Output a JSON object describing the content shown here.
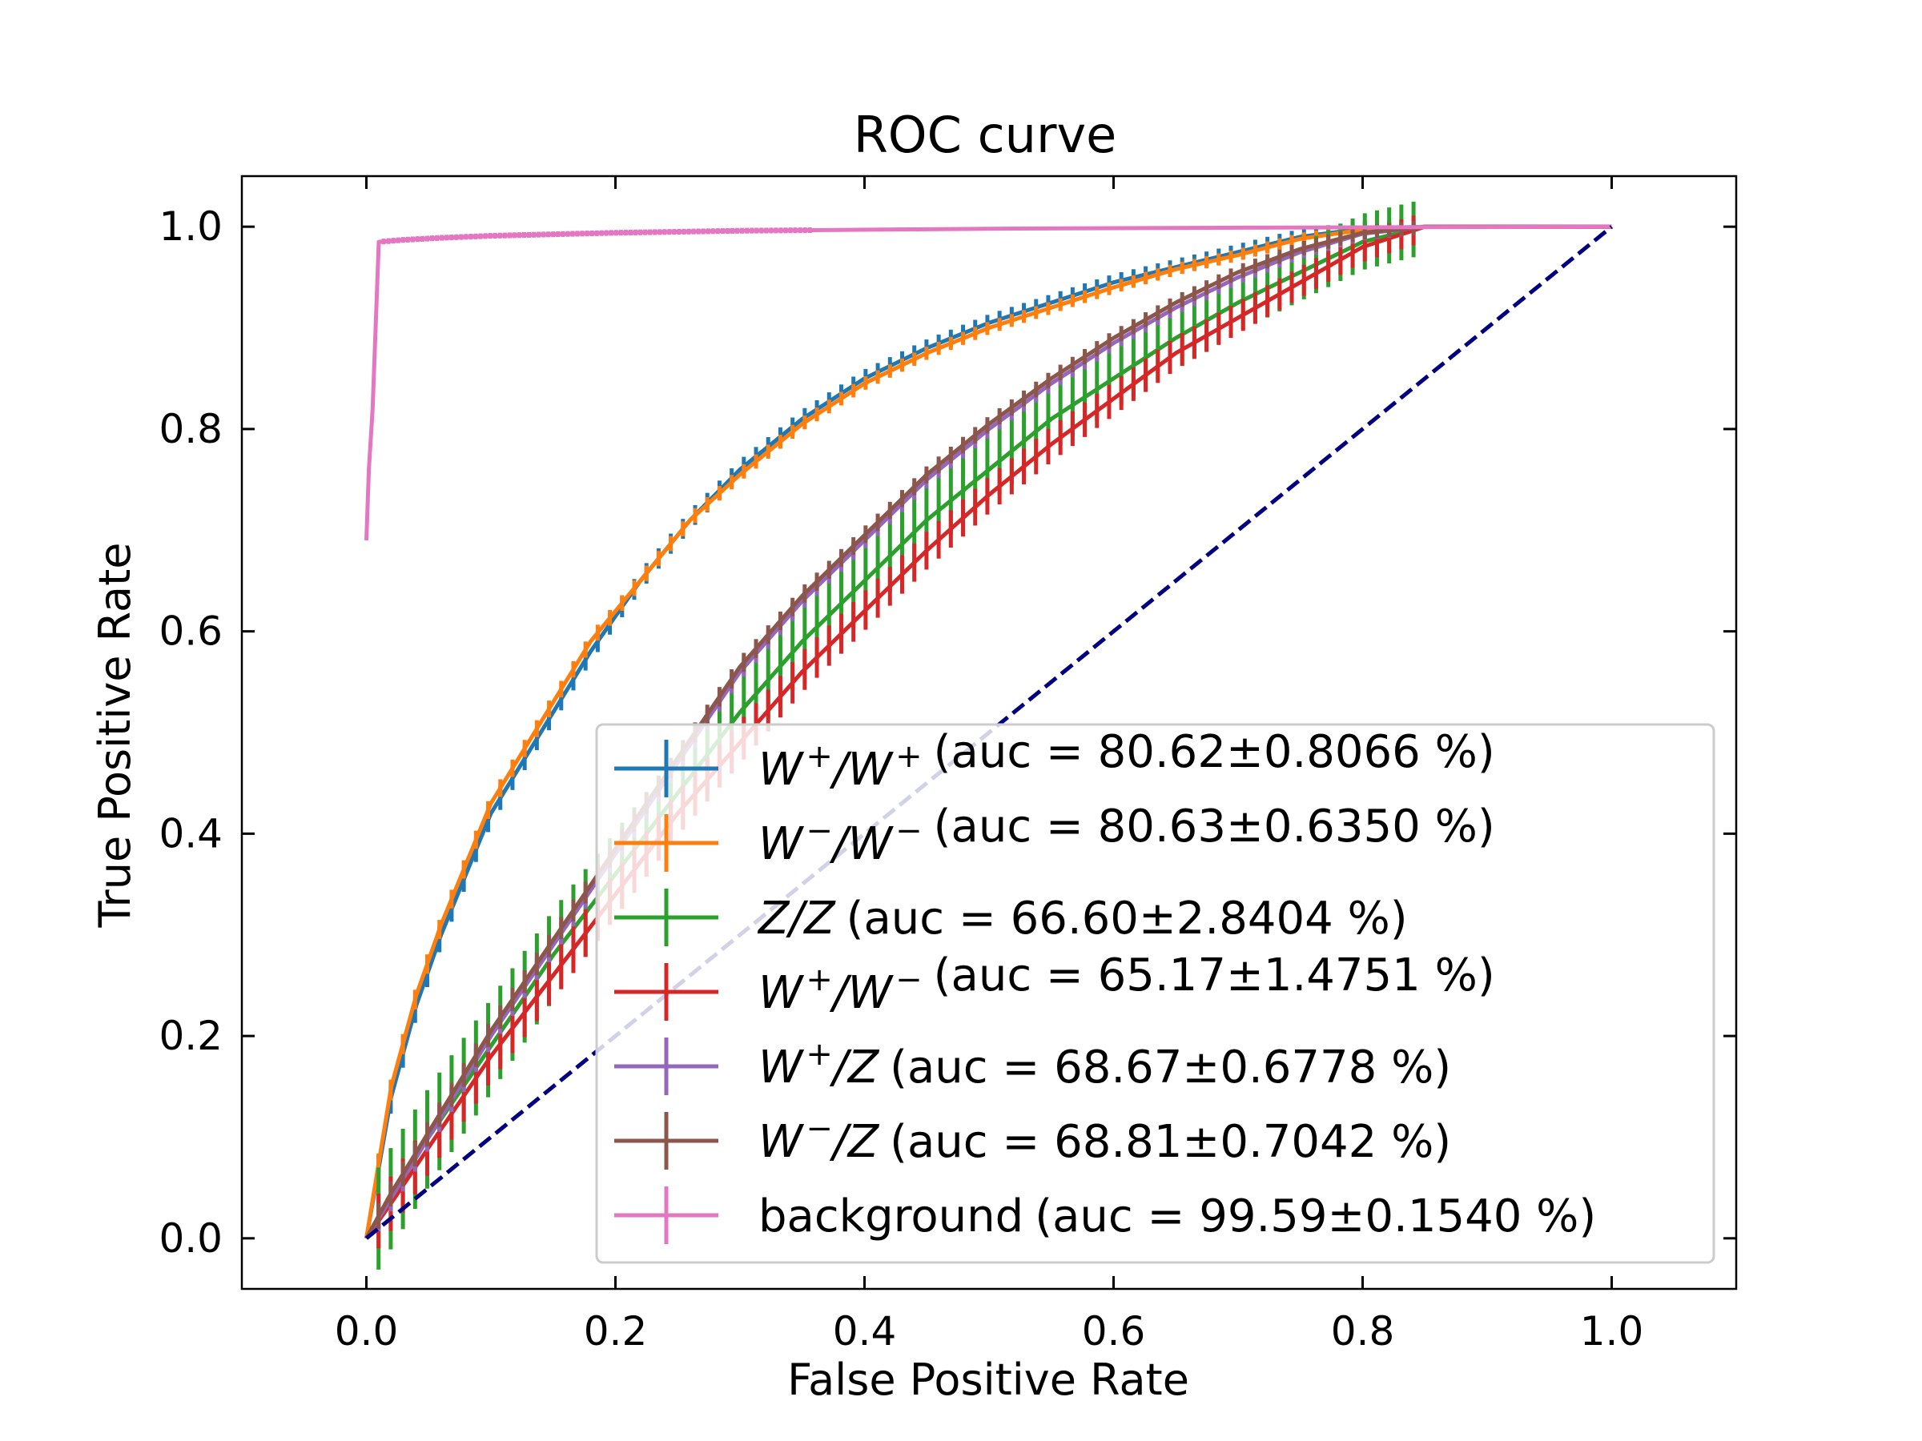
{
  "chart_data": {
    "type": "line",
    "title": "ROC curve",
    "xlabel": "False Positive Rate",
    "ylabel": "True Positive Rate",
    "xlim": [
      -0.1,
      1.1
    ],
    "ylim": [
      -0.05,
      1.05
    ],
    "xticks": [
      "0.0",
      "0.2",
      "0.4",
      "0.6",
      "0.8",
      "1.0"
    ],
    "yticks": [
      "0.0",
      "0.2",
      "0.4",
      "0.6",
      "0.8",
      "1.0"
    ],
    "grid": false,
    "legend_position": "lower-right",
    "diagonal": {
      "x": [
        0,
        1
      ],
      "y": [
        0,
        1
      ],
      "color": "#000080",
      "style": "dashed"
    },
    "series": [
      {
        "name_parts": [
          "W",
          "+",
          "/W",
          "+"
        ],
        "auc": "(auc = 80.62±0.8066 %)",
        "color": "#1f77b4",
        "x": [
          0,
          0.02,
          0.04,
          0.06,
          0.08,
          0.1,
          0.14,
          0.18,
          0.22,
          0.26,
          0.3,
          0.35,
          0.4,
          0.45,
          0.5,
          0.55,
          0.6,
          0.65,
          0.7,
          0.75,
          0.8,
          0.85,
          0.9,
          0.95,
          1.0
        ],
        "y": [
          0,
          0.14,
          0.23,
          0.3,
          0.36,
          0.42,
          0.5,
          0.58,
          0.65,
          0.71,
          0.76,
          0.81,
          0.85,
          0.88,
          0.905,
          0.925,
          0.945,
          0.96,
          0.975,
          0.99,
          0.998,
          1.0,
          1.0,
          1.0,
          1.0
        ],
        "err": 0.008
      },
      {
        "name_parts": [
          "W",
          "−",
          "/W",
          "−"
        ],
        "auc": "(auc = 80.63±0.6350 %)",
        "color": "#ff7f0e",
        "x": [
          0,
          0.02,
          0.04,
          0.06,
          0.08,
          0.1,
          0.14,
          0.18,
          0.22,
          0.26,
          0.3,
          0.35,
          0.4,
          0.45,
          0.5,
          0.55,
          0.6,
          0.65,
          0.7,
          0.75,
          0.8,
          0.85,
          0.9,
          0.95,
          1.0
        ],
        "y": [
          0,
          0.15,
          0.24,
          0.31,
          0.37,
          0.43,
          0.51,
          0.59,
          0.65,
          0.71,
          0.755,
          0.805,
          0.845,
          0.875,
          0.9,
          0.92,
          0.94,
          0.958,
          0.972,
          0.988,
          0.997,
          1.0,
          1.0,
          1.0,
          1.0
        ],
        "err": 0.006
      },
      {
        "name_parts": [
          "Z/Z"
        ],
        "auc": "(auc = 66.60±2.8404 %)",
        "color": "#2ca02c",
        "x": [
          0,
          0.02,
          0.05,
          0.1,
          0.15,
          0.2,
          0.25,
          0.3,
          0.35,
          0.4,
          0.45,
          0.5,
          0.55,
          0.6,
          0.65,
          0.7,
          0.75,
          0.8,
          0.85,
          0.9,
          0.95,
          1.0
        ],
        "y": [
          0,
          0.04,
          0.1,
          0.19,
          0.28,
          0.36,
          0.44,
          0.52,
          0.59,
          0.65,
          0.71,
          0.76,
          0.81,
          0.85,
          0.89,
          0.925,
          0.955,
          0.985,
          1.0,
          1.0,
          1.0,
          1.0
        ],
        "err": 0.028
      },
      {
        "name_parts": [
          "W",
          "+",
          "/W",
          "−"
        ],
        "auc": "(auc = 65.17±1.4751 %)",
        "color": "#d62728",
        "x": [
          0,
          0.02,
          0.05,
          0.1,
          0.15,
          0.2,
          0.25,
          0.3,
          0.35,
          0.4,
          0.45,
          0.5,
          0.55,
          0.6,
          0.65,
          0.7,
          0.75,
          0.8,
          0.85,
          0.9,
          0.95,
          1.0
        ],
        "y": [
          0,
          0.035,
          0.09,
          0.18,
          0.26,
          0.34,
          0.42,
          0.49,
          0.56,
          0.62,
          0.68,
          0.735,
          0.785,
          0.83,
          0.875,
          0.91,
          0.945,
          0.98,
          1.0,
          1.0,
          1.0,
          1.0
        ],
        "err": 0.015
      },
      {
        "name_parts": [
          "W",
          "+",
          "/Z"
        ],
        "auc": "(auc = 68.67±0.6778 %)",
        "color": "#9467bd",
        "x": [
          0,
          0.02,
          0.05,
          0.1,
          0.15,
          0.2,
          0.25,
          0.3,
          0.35,
          0.4,
          0.45,
          0.5,
          0.55,
          0.6,
          0.65,
          0.7,
          0.75,
          0.8,
          0.85,
          0.9,
          0.95,
          1.0
        ],
        "y": [
          0,
          0.04,
          0.1,
          0.2,
          0.29,
          0.38,
          0.47,
          0.56,
          0.63,
          0.69,
          0.75,
          0.8,
          0.845,
          0.885,
          0.92,
          0.95,
          0.975,
          0.993,
          1.0,
          1.0,
          1.0,
          1.0
        ],
        "err": 0.007
      },
      {
        "name_parts": [
          "W",
          "−",
          "/Z"
        ],
        "auc": "(auc = 68.81±0.7042 %)",
        "color": "#8c564b",
        "x": [
          0,
          0.02,
          0.05,
          0.1,
          0.15,
          0.2,
          0.25,
          0.3,
          0.35,
          0.4,
          0.45,
          0.5,
          0.55,
          0.6,
          0.65,
          0.7,
          0.75,
          0.8,
          0.85,
          0.9,
          0.95,
          1.0
        ],
        "y": [
          0,
          0.045,
          0.105,
          0.205,
          0.295,
          0.385,
          0.475,
          0.565,
          0.635,
          0.695,
          0.755,
          0.805,
          0.85,
          0.89,
          0.925,
          0.955,
          0.978,
          0.994,
          1.0,
          1.0,
          1.0,
          1.0
        ],
        "err": 0.007
      },
      {
        "name_parts": [
          "background"
        ],
        "auc": "(auc = 99.59±0.1540 %)",
        "color": "#e377c2",
        "x": [
          0,
          0.002,
          0.005,
          0.01,
          0.03,
          0.06,
          0.1,
          0.2,
          0.3,
          0.5,
          0.7,
          1.0
        ],
        "y": [
          0.69,
          0.76,
          0.82,
          0.985,
          0.987,
          0.989,
          0.991,
          0.994,
          0.996,
          0.998,
          0.999,
          1.0
        ],
        "err": 0.0015
      }
    ]
  }
}
